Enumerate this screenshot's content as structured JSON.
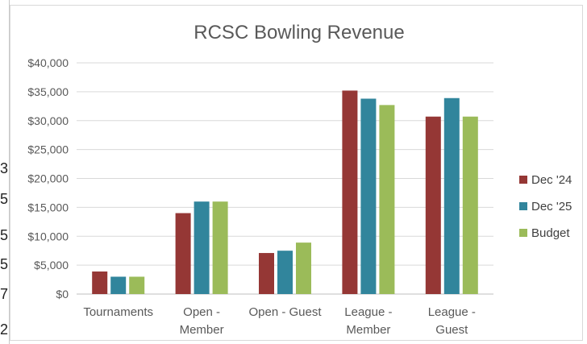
{
  "chart_data": {
    "type": "bar",
    "title": "RCSC Bowling Revenue",
    "xlabel": "",
    "ylabel": "",
    "ylim": [
      0,
      40000
    ],
    "yticks": [
      "$0",
      "$5,000",
      "$10,000",
      "$15,000",
      "$20,000",
      "$25,000",
      "$30,000",
      "$35,000",
      "$40,000"
    ],
    "grid": true,
    "legend_position": "right",
    "categories": [
      [
        "Tournaments"
      ],
      [
        "Open -",
        "Member"
      ],
      [
        "Open - Guest"
      ],
      [
        "League -",
        "Member"
      ],
      [
        "League -",
        "Guest"
      ]
    ],
    "series": [
      {
        "name": "Dec '24",
        "color": "#953735",
        "values": [
          3900,
          14000,
          7100,
          35200,
          30700
        ]
      },
      {
        "name": "Dec '25",
        "color": "#31859c",
        "values": [
          3000,
          16000,
          7500,
          33800,
          33900
        ]
      },
      {
        "name": "Budget",
        "color": "#9bbb59",
        "values": [
          3000,
          16000,
          8900,
          32700,
          30700
        ]
      }
    ]
  },
  "sheet_fragments": [
    "3",
    "5",
    "5",
    "5",
    "7",
    "2"
  ]
}
